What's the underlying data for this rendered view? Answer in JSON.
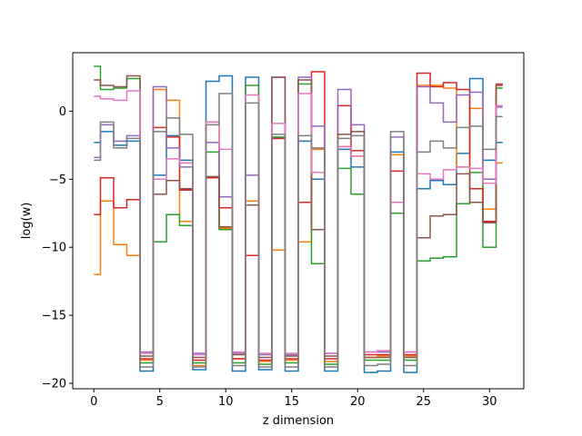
{
  "chart_data": {
    "type": "line",
    "step": "post",
    "title": "",
    "xlabel": "z dimension",
    "ylabel": "log(w)",
    "xlim": [
      -1.6,
      32.6
    ],
    "ylim": [
      -20.4,
      4.3
    ],
    "xticks": [
      0,
      5,
      10,
      15,
      20,
      25,
      30
    ],
    "yticks": [
      0,
      -5,
      -10,
      -15,
      -20
    ],
    "xtick_labels": [
      "0",
      "5",
      "10",
      "15",
      "20",
      "25",
      "30"
    ],
    "ytick_labels": [
      "0",
      "−5",
      "−10",
      "−15",
      "−20"
    ],
    "grid": false,
    "legend": "none",
    "x": [
      0,
      1,
      2,
      3,
      4,
      5,
      6,
      7,
      8,
      9,
      10,
      11,
      12,
      13,
      14,
      15,
      16,
      17,
      18,
      19,
      20,
      21,
      22,
      23,
      24,
      25,
      26,
      27,
      28,
      29,
      30,
      31
    ],
    "series": [
      {
        "color": "#1f77b4",
        "values": [
          -2.3,
          -1.5,
          -2.5,
          -2.2,
          -19.1,
          -4.7,
          -1.8,
          -3.6,
          -19.0,
          2.2,
          2.6,
          -19.1,
          2.5,
          -19.0,
          -2.0,
          -19.1,
          -2.2,
          -5.0,
          -19.1,
          -2.8,
          -4.1,
          -19.2,
          -19.1,
          -3.0,
          -19.2,
          -5.7,
          -5.1,
          -5.4,
          -3.1,
          2.4,
          -3.6,
          -2.3
        ]
      },
      {
        "color": "#ff7f0e",
        "values": [
          -12.0,
          -6.6,
          -9.8,
          -10.6,
          -18.3,
          1.6,
          0.8,
          -8.1,
          -18.7,
          -0.8,
          -8.6,
          -18.2,
          -6.6,
          -18.4,
          -10.2,
          -18.3,
          -9.6,
          -2.8,
          -18.4,
          -2.6,
          -3.3,
          -18.1,
          -18.0,
          -3.2,
          -18.0,
          1.9,
          1.9,
          1.7,
          -4.1,
          0.2,
          -7.2,
          -3.8
        ]
      },
      {
        "color": "#2ca02c",
        "values": [
          3.3,
          1.6,
          1.7,
          2.4,
          -18.5,
          -9.6,
          -7.6,
          -8.4,
          -18.5,
          -3.0,
          -8.7,
          -18.5,
          1.9,
          -18.6,
          -1.9,
          -18.5,
          2.0,
          -11.2,
          -18.6,
          -4.2,
          -6.1,
          -18.3,
          -18.3,
          -7.5,
          -18.3,
          -11.0,
          -10.8,
          -10.7,
          -6.8,
          -4.5,
          -10.0,
          1.7
        ]
      },
      {
        "color": "#d62728",
        "values": [
          -7.6,
          -4.9,
          -7.1,
          -6.5,
          -18.2,
          -1.2,
          -1.9,
          -5.8,
          -18.3,
          -4.9,
          -7.1,
          -18.2,
          -10.6,
          -18.3,
          -2.0,
          -18.2,
          -6.7,
          2.9,
          -18.2,
          0.4,
          -2.9,
          -17.9,
          -17.9,
          -4.4,
          -17.9,
          2.8,
          1.8,
          2.1,
          1.6,
          -5.7,
          -8.1,
          1.9
        ]
      },
      {
        "color": "#9467bd",
        "values": [
          -3.4,
          -1.0,
          -2.2,
          -1.8,
          -17.7,
          1.8,
          -2.7,
          -4.1,
          -17.8,
          -2.3,
          -6.3,
          -17.8,
          -4.7,
          -17.9,
          2.5,
          -17.9,
          2.5,
          -1.1,
          -17.8,
          1.6,
          -1.0,
          -17.7,
          -17.7,
          -1.9,
          -17.7,
          1.8,
          0.6,
          -0.8,
          1.2,
          1.4,
          -5.0,
          0.3
        ]
      },
      {
        "color": "#8c564b",
        "values": [
          2.3,
          1.9,
          1.8,
          2.6,
          -18.0,
          -6.1,
          -5.1,
          -5.7,
          -18.1,
          -4.8,
          -8.5,
          -17.9,
          -6.9,
          -18.1,
          2.5,
          -18.0,
          2.3,
          -8.7,
          -18.0,
          -1.7,
          -1.5,
          -18.1,
          -18.1,
          -6.7,
          -18.1,
          -9.3,
          -7.7,
          -7.6,
          -4.6,
          -6.7,
          -8.2,
          2.0
        ]
      },
      {
        "color": "#e377c2",
        "values": [
          1.1,
          0.9,
          0.8,
          1.5,
          -17.8,
          -5.0,
          -3.5,
          -3.8,
          -17.9,
          -0.8,
          -2.8,
          -17.7,
          1.2,
          -17.8,
          -0.9,
          -17.8,
          1.3,
          -4.5,
          -17.8,
          -2.6,
          -3.3,
          -17.7,
          -17.6,
          -6.7,
          -17.7,
          -4.6,
          -5.0,
          -4.3,
          -4.1,
          -4.2,
          -5.3,
          0.4
        ]
      },
      {
        "color": "#7f7f7f",
        "values": [
          -3.6,
          -0.8,
          -2.7,
          -2.0,
          -18.8,
          -1.5,
          -0.5,
          -1.7,
          -18.8,
          -1.0,
          1.3,
          -18.7,
          0.6,
          -18.8,
          -1.7,
          -18.8,
          -1.8,
          -2.7,
          -18.8,
          -2.0,
          -1.8,
          -18.7,
          -18.6,
          -1.5,
          -18.7,
          -3.0,
          -2.2,
          -2.7,
          -1.2,
          -1.1,
          -2.8,
          -0.4
        ]
      }
    ]
  }
}
